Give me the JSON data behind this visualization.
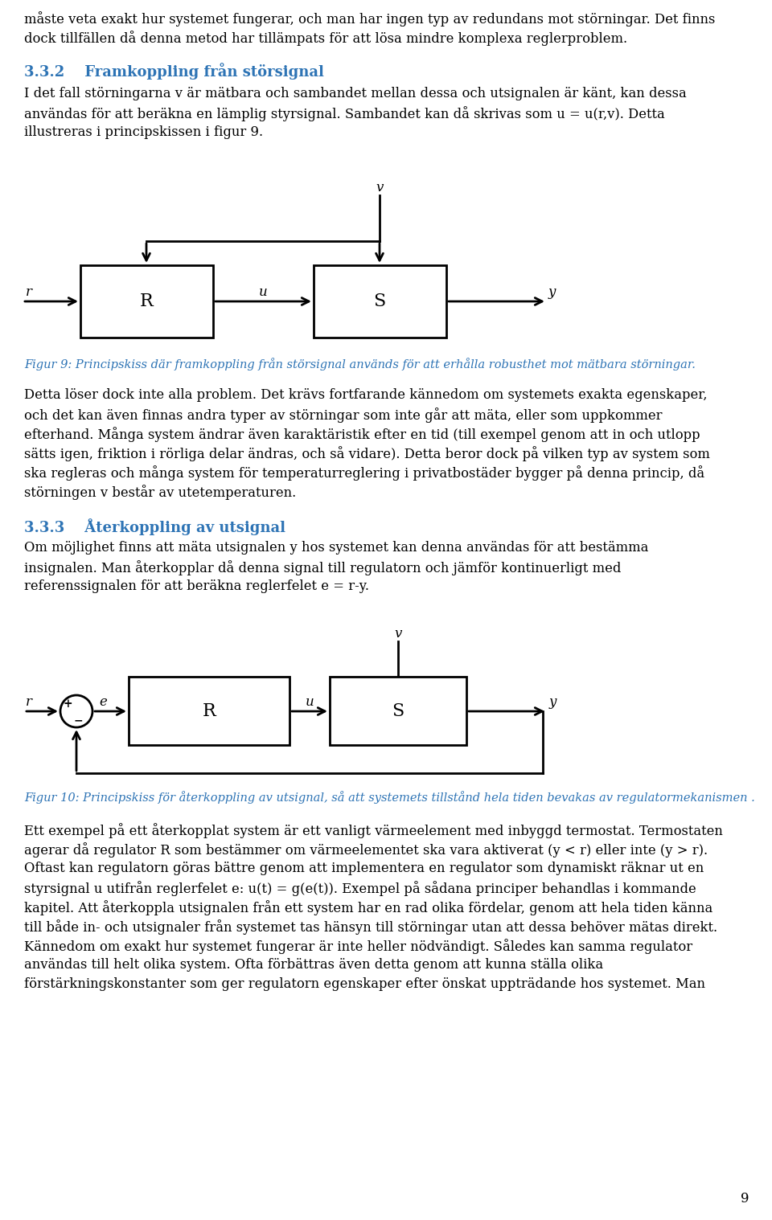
{
  "bg_color": "#ffffff",
  "text_color": "#000000",
  "heading_color": "#2e74b5",
  "fig_caption_color": "#2e74b5",
  "page_number": "9",
  "para1_lines": [
    "måste veta exakt hur systemet fungerar, och man har ingen typ av redundans mot störningar. Det finns",
    "dock tillfällen då denna metod har tillämpats för att lösa mindre komplexa reglerproblem."
  ],
  "heading332": "3.3.2    Framkoppling från störsignal",
  "para2_lines": [
    "I det fall störningarna v är mätbara och sambandet mellan dessa och utsignalen är känt, kan dessa",
    "användas för att beräkna en lämplig styrsignal. Sambandet kan då skrivas som u = u(r,v). Detta",
    "illustreras i principskissen i figur 9."
  ],
  "fig9_caption": "Figur 9: Principskiss där framkoppling från störsignal används för att erhålla robusthet mot mätbara störningar.",
  "para3_lines": [
    "Detta löser dock inte alla problem. Det krävs fortfarande kännedom om systemets exakta egenskaper,",
    "och det kan även finnas andra typer av störningar som inte går att mäta, eller som uppkommer",
    "efterhand. Många system ändrar även karaktäristik efter en tid (till exempel genom att in och utlopp",
    "sätts igen, friktion i rörliga delar ändras, och så vidare). Detta beror dock på vilken typ av system som",
    "ska regleras och många system för temperaturreglering i privatbostäder bygger på denna princip, då",
    "störningen v består av utetemperaturen."
  ],
  "heading333": "3.3.3    Återkoppling av utsignal",
  "para4_lines": [
    "Om möjlighet finns att mäta utsignalen y hos systemet kan denna användas för att bestämma",
    "insignalen. Man återkopplar då denna signal till regulatorn och jämför kontinuerligt med",
    "referenssignalen för att beräkna reglerfelet e = r-y."
  ],
  "fig10_caption": "Figur 10: Principskiss för återkoppling av utsignal, så att systemets tillstånd hela tiden bevakas av regulatormekanismen .",
  "para5_lines": [
    "Ett exempel på ett återkopplat system är ett vanligt värmeelement med inbyggd termostat. Termostaten",
    "agerar då regulator R som bestämmer om värmeelementet ska vara aktiverat (y < r) eller inte (y > r).",
    "Oftast kan regulatorn göras bättre genom att implementera en regulator som dynamiskt räknar ut en",
    "styrsignal u utifrån reglerfelet e: u(t) = g(e(t)). Exempel på sådana principer behandlas i kommande",
    "kapitel. Att återkoppla utsignalen från ett system har en rad olika fördelar, genom att hela tiden känna",
    "till både in- och utsignaler från systemet tas hänsyn till störningar utan att dessa behöver mätas direkt.",
    "Kännedom om exakt hur systemet fungerar är inte heller nödvändigt. Således kan samma regulator",
    "användas till helt olika system. Ofta förbättras även detta genom att kunna ställa olika",
    "förstärkningskonstanter som ger regulatorn egenskaper efter önskat uppträdande hos systemet. Man"
  ]
}
